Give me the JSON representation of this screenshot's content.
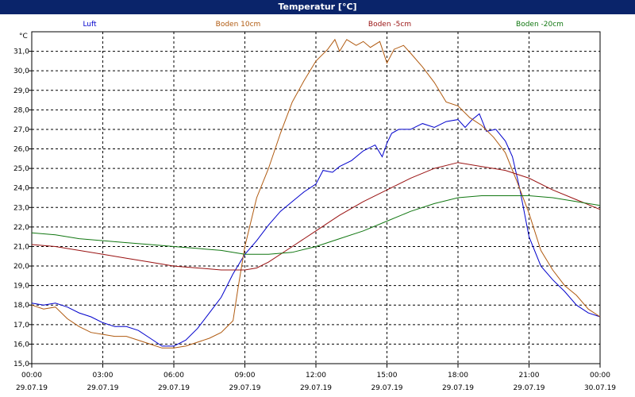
{
  "window": {
    "title": "Temperatur [°C]"
  },
  "chart_data": {
    "type": "line",
    "title": "Temperatur [°C]",
    "ylabel": "°C",
    "ylim": [
      15.0,
      32.0
    ],
    "y_ticks": [
      "15,0",
      "16,0",
      "17,0",
      "18,0",
      "19,0",
      "20,0",
      "21,0",
      "22,0",
      "23,0",
      "24,0",
      "25,0",
      "26,0",
      "27,0",
      "28,0",
      "29,0",
      "30,0",
      "31,0"
    ],
    "xlim": [
      0,
      24
    ],
    "x_ticks": [
      {
        "time": "00:00",
        "date": "29.07.19"
      },
      {
        "time": "03:00",
        "date": "29.07.19"
      },
      {
        "time": "06:00",
        "date": "29.07.19"
      },
      {
        "time": "09:00",
        "date": "29.07.19"
      },
      {
        "time": "12:00",
        "date": "29.07.19"
      },
      {
        "time": "15:00",
        "date": "29.07.19"
      },
      {
        "time": "18:00",
        "date": "29.07.19"
      },
      {
        "time": "21:00",
        "date": "29.07.19"
      },
      {
        "time": "00:00",
        "date": "30.07.19"
      }
    ],
    "grid": true,
    "legend_position": "top",
    "series": [
      {
        "name": "Luft",
        "color": "#0000cc",
        "points": [
          [
            0,
            18.1
          ],
          [
            0.5,
            18.0
          ],
          [
            1,
            18.1
          ],
          [
            1.5,
            17.9
          ],
          [
            2,
            17.6
          ],
          [
            2.5,
            17.4
          ],
          [
            3,
            17.1
          ],
          [
            3.5,
            16.9
          ],
          [
            4,
            16.9
          ],
          [
            4.5,
            16.7
          ],
          [
            5,
            16.3
          ],
          [
            5.5,
            15.9
          ],
          [
            6,
            15.9
          ],
          [
            6.5,
            16.2
          ],
          [
            7,
            16.8
          ],
          [
            7.5,
            17.6
          ],
          [
            8,
            18.4
          ],
          [
            8.5,
            19.6
          ],
          [
            9,
            20.6
          ],
          [
            9.5,
            21.3
          ],
          [
            10,
            22.1
          ],
          [
            10.5,
            22.8
          ],
          [
            11,
            23.3
          ],
          [
            11.5,
            23.8
          ],
          [
            12,
            24.2
          ],
          [
            12.3,
            24.9
          ],
          [
            12.7,
            24.8
          ],
          [
            13,
            25.1
          ],
          [
            13.5,
            25.4
          ],
          [
            14,
            25.9
          ],
          [
            14.5,
            26.2
          ],
          [
            14.8,
            25.6
          ],
          [
            15,
            26.3
          ],
          [
            15.2,
            26.8
          ],
          [
            15.5,
            27.0
          ],
          [
            16,
            27.0
          ],
          [
            16.5,
            27.3
          ],
          [
            17,
            27.1
          ],
          [
            17.5,
            27.4
          ],
          [
            18,
            27.5
          ],
          [
            18.3,
            27.1
          ],
          [
            18.6,
            27.5
          ],
          [
            18.9,
            27.8
          ],
          [
            19.2,
            26.9
          ],
          [
            19.6,
            27.0
          ],
          [
            20,
            26.4
          ],
          [
            20.3,
            25.6
          ],
          [
            20.6,
            24.0
          ],
          [
            21,
            21.5
          ],
          [
            21.5,
            20.0
          ],
          [
            22,
            19.3
          ],
          [
            22.5,
            18.7
          ],
          [
            23,
            18.0
          ],
          [
            23.5,
            17.6
          ],
          [
            24,
            17.4
          ]
        ]
      },
      {
        "name": "Boden 10cm",
        "color": "#b05a10",
        "points": [
          [
            0,
            18.0
          ],
          [
            0.5,
            17.8
          ],
          [
            1,
            17.9
          ],
          [
            1.5,
            17.3
          ],
          [
            2,
            16.9
          ],
          [
            2.5,
            16.6
          ],
          [
            3,
            16.5
          ],
          [
            3.5,
            16.4
          ],
          [
            4,
            16.4
          ],
          [
            4.5,
            16.2
          ],
          [
            5,
            16.0
          ],
          [
            5.5,
            15.8
          ],
          [
            6,
            15.8
          ],
          [
            6.5,
            15.9
          ],
          [
            7,
            16.1
          ],
          [
            7.5,
            16.3
          ],
          [
            8,
            16.6
          ],
          [
            8.5,
            17.2
          ],
          [
            8.7,
            18.8
          ],
          [
            9,
            21.0
          ],
          [
            9.5,
            23.5
          ],
          [
            10,
            25.0
          ],
          [
            10.5,
            26.8
          ],
          [
            11,
            28.4
          ],
          [
            11.5,
            29.5
          ],
          [
            12,
            30.5
          ],
          [
            12.5,
            31.1
          ],
          [
            12.8,
            31.6
          ],
          [
            13,
            31.0
          ],
          [
            13.3,
            31.6
          ],
          [
            13.7,
            31.3
          ],
          [
            14,
            31.5
          ],
          [
            14.3,
            31.2
          ],
          [
            14.7,
            31.5
          ],
          [
            15,
            30.4
          ],
          [
            15.3,
            31.1
          ],
          [
            15.7,
            31.3
          ],
          [
            16,
            30.9
          ],
          [
            16.5,
            30.2
          ],
          [
            17,
            29.4
          ],
          [
            17.5,
            28.4
          ],
          [
            18,
            28.2
          ],
          [
            18.5,
            27.6
          ],
          [
            19,
            27.2
          ],
          [
            19.5,
            26.6
          ],
          [
            20,
            25.8
          ],
          [
            20.5,
            24.3
          ],
          [
            21,
            22.7
          ],
          [
            21.5,
            20.8
          ],
          [
            22,
            19.8
          ],
          [
            22.5,
            19.0
          ],
          [
            23,
            18.5
          ],
          [
            23.5,
            17.8
          ],
          [
            24,
            17.4
          ]
        ]
      },
      {
        "name": "Boden -5cm",
        "color": "#991111",
        "points": [
          [
            0,
            21.1
          ],
          [
            1,
            21.0
          ],
          [
            2,
            20.8
          ],
          [
            3,
            20.6
          ],
          [
            4,
            20.4
          ],
          [
            5,
            20.2
          ],
          [
            6,
            20.0
          ],
          [
            7,
            19.9
          ],
          [
            8,
            19.8
          ],
          [
            9,
            19.8
          ],
          [
            9.5,
            19.9
          ],
          [
            10,
            20.2
          ],
          [
            11,
            21.0
          ],
          [
            12,
            21.8
          ],
          [
            13,
            22.6
          ],
          [
            14,
            23.3
          ],
          [
            15,
            23.9
          ],
          [
            16,
            24.5
          ],
          [
            17,
            25.0
          ],
          [
            18,
            25.3
          ],
          [
            19,
            25.1
          ],
          [
            20,
            24.9
          ],
          [
            21,
            24.5
          ],
          [
            22,
            23.9
          ],
          [
            23,
            23.4
          ],
          [
            24,
            22.9
          ]
        ]
      },
      {
        "name": "Boden -20cm",
        "color": "#117711",
        "points": [
          [
            0,
            21.7
          ],
          [
            1,
            21.6
          ],
          [
            2,
            21.4
          ],
          [
            3,
            21.3
          ],
          [
            4,
            21.2
          ],
          [
            5,
            21.1
          ],
          [
            6,
            21.0
          ],
          [
            7,
            20.9
          ],
          [
            8,
            20.8
          ],
          [
            9,
            20.6
          ],
          [
            10,
            20.6
          ],
          [
            11,
            20.7
          ],
          [
            12,
            21.0
          ],
          [
            13,
            21.4
          ],
          [
            14,
            21.8
          ],
          [
            15,
            22.3
          ],
          [
            16,
            22.8
          ],
          [
            17,
            23.2
          ],
          [
            18,
            23.5
          ],
          [
            19,
            23.6
          ],
          [
            20,
            23.6
          ],
          [
            21,
            23.6
          ],
          [
            22,
            23.5
          ],
          [
            23,
            23.3
          ],
          [
            24,
            23.1
          ]
        ]
      }
    ]
  }
}
